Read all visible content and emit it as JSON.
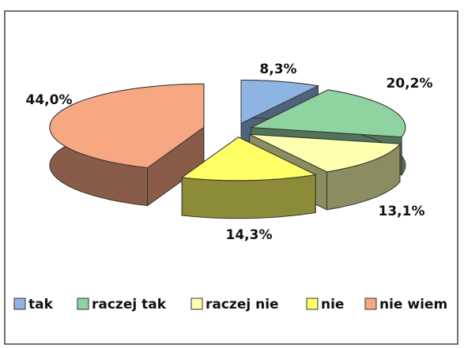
{
  "chart_data": {
    "type": "pie3d",
    "categories": [
      "tak",
      "raczej tak",
      "raczej nie",
      "nie",
      "nie wiem"
    ],
    "values": [
      8.3,
      20.2,
      13.1,
      14.3,
      44.0
    ],
    "value_labels": [
      "8,3%",
      "20,2%",
      "13,1%",
      "14,3%",
      "44,0%"
    ],
    "colors": [
      "#8db4e2",
      "#8fd3a0",
      "#ffffb0",
      "#ffff66",
      "#f7a882"
    ],
    "legend": "bottom"
  }
}
